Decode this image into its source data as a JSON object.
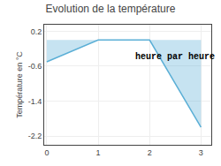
{
  "chart_data": {
    "type": "line",
    "title": "Evolution de la température",
    "y_label": "Température en °C",
    "x": [
      0,
      1,
      2,
      3
    ],
    "values": [
      -0.5,
      0.0,
      0.0,
      -2.0
    ],
    "color": "#5bafd6",
    "xlim": [
      -0.05,
      3.2
    ],
    "ylim": [
      -2.4,
      0.35
    ],
    "xticks": [
      0,
      1,
      2,
      3
    ],
    "yticks": [
      0.2,
      -0.6,
      -1.4,
      -2.2
    ],
    "grid": true,
    "annotations": [
      {
        "text": "heure par heure",
        "x": 2.5,
        "y": -0.38
      }
    ]
  }
}
